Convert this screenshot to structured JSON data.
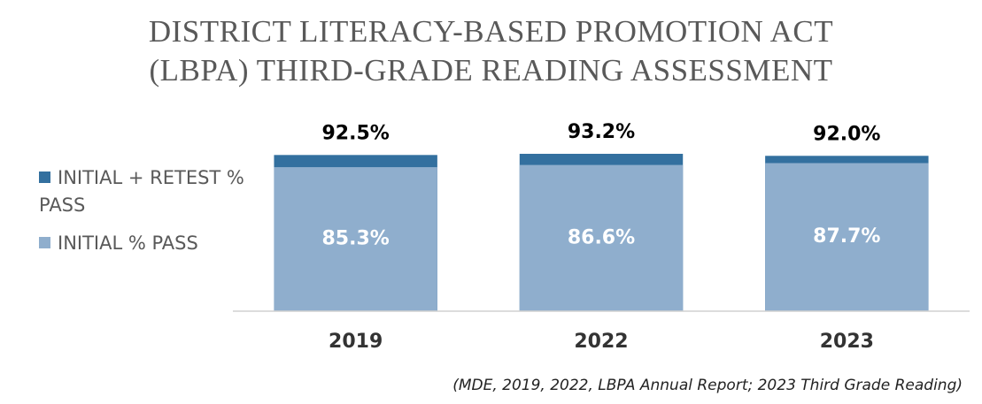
{
  "chart_data": {
    "type": "overlap_bar",
    "title": [
      "DISTRICT LITERACY-BASED PROMOTION ACT",
      "(LBPA) THIRD-GRADE READING ASSESSMENT"
    ],
    "categories": [
      "2019",
      "2022",
      "2023"
    ],
    "series": [
      {
        "name": "INITIAL + RETEST % PASS",
        "color": "#33709f",
        "values": [
          92.5,
          93.2,
          92.0
        ],
        "value_labels": [
          "92.5%",
          "93.2%",
          "92.0%"
        ]
      },
      {
        "name": "INITIAL % PASS",
        "color": "#8faecd",
        "values": [
          85.3,
          86.6,
          87.7
        ],
        "value_labels": [
          "85.3%",
          "86.6%",
          "87.7%"
        ]
      }
    ],
    "ylim": [
      0,
      100
    ],
    "legend": "left",
    "note": "(MDE,  2019, 2022, LBPA Annual Report; 2023 Third Grade Reading)"
  }
}
